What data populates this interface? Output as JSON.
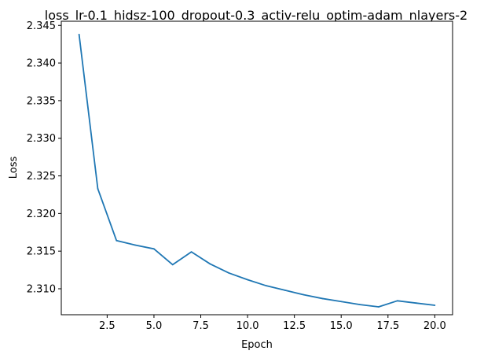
{
  "chart_data": {
    "type": "line",
    "title": "loss_lr-0.1_hidsz-100_dropout-0.3_activ-relu_optim-adam_nlayers-2",
    "xlabel": "Epoch",
    "ylabel": "Loss",
    "xlim": [
      0.05,
      20.95
    ],
    "ylim": [
      2.30655,
      2.34555
    ],
    "xticks": [
      2.5,
      5.0,
      7.5,
      10.0,
      12.5,
      15.0,
      17.5,
      20.0
    ],
    "xtick_labels": [
      "2.5",
      "5.0",
      "7.5",
      "10.0",
      "12.5",
      "15.0",
      "17.5",
      "20.0"
    ],
    "yticks": [
      2.31,
      2.315,
      2.32,
      2.325,
      2.33,
      2.335,
      2.34,
      2.345
    ],
    "ytick_labels": [
      "2.310",
      "2.315",
      "2.320",
      "2.325",
      "2.330",
      "2.335",
      "2.340",
      "2.345"
    ],
    "grid": false,
    "series": [
      {
        "color": "#1f77b4",
        "x": [
          1,
          2,
          3,
          4,
          5,
          6,
          7,
          8,
          9,
          10,
          11,
          12,
          13,
          14,
          15,
          16,
          17,
          18,
          19,
          20
        ],
        "y": [
          2.3438,
          2.3233,
          2.3164,
          2.3158,
          2.3153,
          2.3132,
          2.3149,
          2.3133,
          2.3121,
          2.3112,
          2.3104,
          2.3098,
          2.3092,
          2.3087,
          2.3083,
          2.3079,
          2.3076,
          2.3084,
          2.3081,
          2.3078
        ]
      }
    ]
  }
}
